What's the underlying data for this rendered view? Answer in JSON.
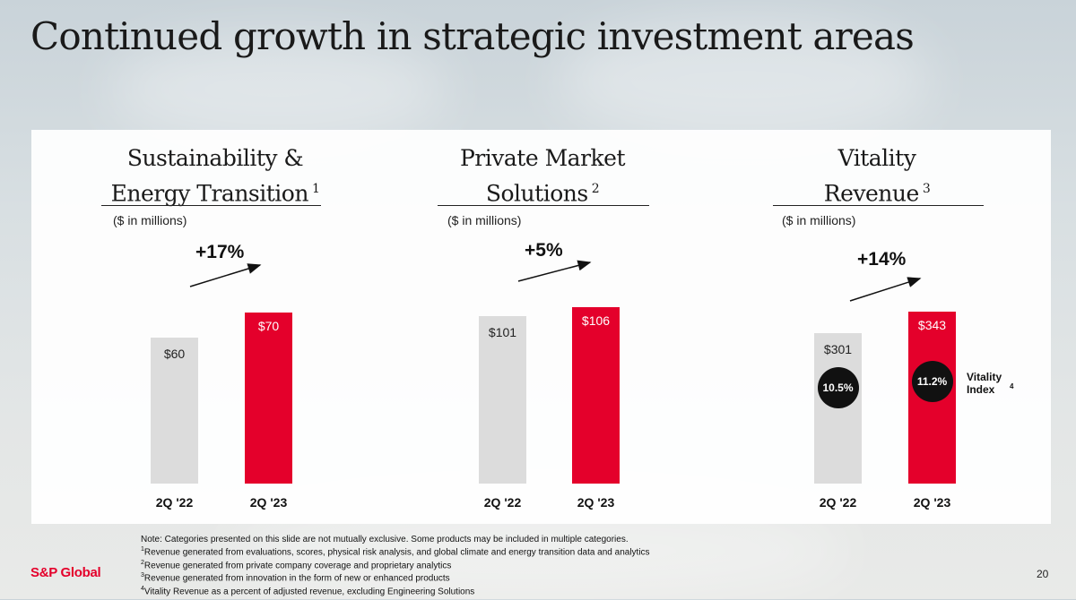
{
  "page": {
    "title": "Continued growth in strategic investment areas",
    "logo": "S&P Global",
    "page_number": "20"
  },
  "colors": {
    "grey_bar": "#dcdcdc",
    "red_bar": "#e4002b",
    "index_circle": "#111111",
    "brand": "#e4002b"
  },
  "chart_data": [
    {
      "type": "bar",
      "title_lines": [
        "Sustainability &",
        "Energy Transition"
      ],
      "footnote_ref": "1",
      "unit_label": "($ in millions)",
      "growth_label": "+17%",
      "categories": [
        "2Q '22",
        "2Q '23"
      ],
      "values": [
        60,
        70
      ],
      "value_labels": [
        "$60",
        "$70"
      ],
      "ylim": [
        0,
        90
      ]
    },
    {
      "type": "bar",
      "title_lines": [
        "Private Market",
        "Solutions"
      ],
      "footnote_ref": "2",
      "unit_label": "($ in millions)",
      "growth_label": "+5%",
      "categories": [
        "2Q '22",
        "2Q '23"
      ],
      "values": [
        101,
        106
      ],
      "value_labels": [
        "$101",
        "$106"
      ],
      "ylim": [
        0,
        132
      ]
    },
    {
      "type": "bar",
      "title_lines": [
        "Vitality",
        "Revenue"
      ],
      "footnote_ref": "3",
      "unit_label": "($ in millions)",
      "growth_label": "+14%",
      "categories": [
        "2Q '22",
        "2Q '23"
      ],
      "values": [
        301,
        343
      ],
      "value_labels": [
        "$301",
        "$343"
      ],
      "ylim": [
        0,
        438
      ],
      "index_values": [
        "10.5%",
        "11.2%"
      ],
      "index_label": "Vitality Index",
      "index_footnote_ref": "4"
    }
  ],
  "notes": [
    {
      "ref": "",
      "text": "Note: Categories presented on this slide are not mutually exclusive. Some products may be included in multiple categories."
    },
    {
      "ref": "1",
      "text": "Revenue generated from evaluations, scores, physical risk analysis, and global climate and energy transition data and analytics"
    },
    {
      "ref": "2",
      "text": "Revenue generated from private company coverage and proprietary analytics"
    },
    {
      "ref": "3",
      "text": "Revenue generated from innovation in the form of new or enhanced products"
    },
    {
      "ref": "4",
      "text": "Vitality Revenue as a percent of adjusted revenue, excluding Engineering Solutions"
    }
  ]
}
